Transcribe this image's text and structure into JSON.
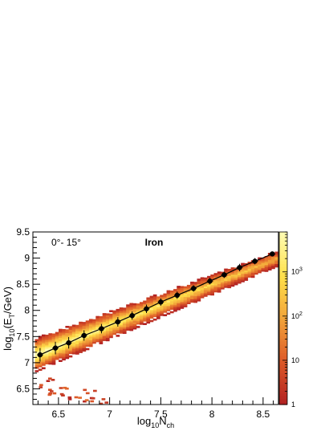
{
  "chart_data": {
    "type": "heatmap",
    "title": "",
    "xlabel": "log_{10}N_{ch}",
    "ylabel": "log_{10}(E_{T}/GeV)",
    "x_range": [
      6.25,
      8.65
    ],
    "y_range": [
      6.2,
      9.5
    ],
    "x_ticks": [
      "6.5",
      "7",
      "7.5",
      "8",
      "8.5"
    ],
    "y_ticks": [
      "6.5",
      "7",
      "7.5",
      "8",
      "8.5",
      "9",
      "9.5"
    ],
    "annotations": {
      "zenith_range": "0°- 15°",
      "primary": "Iron"
    },
    "color_scale": {
      "scale": "log",
      "range": [
        1,
        8000
      ],
      "tick_labels": [
        {
          "base": "1",
          "exp": ""
        },
        {
          "base": "10",
          "exp": ""
        },
        {
          "base": "10",
          "exp": "2"
        },
        {
          "base": "10",
          "exp": "3"
        }
      ],
      "colors": [
        "#b22222",
        "#dd5a28",
        "#f2a43a",
        "#ffe04a",
        "#fffbb0"
      ]
    },
    "heatmap_band": {
      "x_start": 6.27,
      "x_end": 8.62,
      "x_step": 0.033,
      "y_step": 0.033,
      "slope": 1.0,
      "intercept_y_at_x0": 7.2,
      "x0": 6.3,
      "half_width": 0.32,
      "low_tail": [
        {
          "x": 6.35,
          "y": 6.55
        },
        {
          "x": 6.42,
          "y": 6.45
        },
        {
          "x": 6.5,
          "y": 6.4
        },
        {
          "x": 6.6,
          "y": 6.37
        },
        {
          "x": 6.7,
          "y": 6.32
        },
        {
          "x": 6.82,
          "y": 6.3
        },
        {
          "x": 6.95,
          "y": 6.28
        },
        {
          "x": 6.4,
          "y": 6.7
        },
        {
          "x": 6.55,
          "y": 6.55
        },
        {
          "x": 6.78,
          "y": 6.45
        }
      ]
    },
    "series": [
      {
        "type": "profile",
        "x": [
          6.32,
          6.47,
          6.6,
          6.75,
          6.92,
          7.08,
          7.22,
          7.36,
          7.5,
          7.66,
          7.82,
          7.98,
          8.12,
          8.27,
          8.42,
          8.59
        ],
        "y": [
          7.15,
          7.28,
          7.38,
          7.52,
          7.65,
          7.78,
          7.9,
          8.03,
          8.16,
          8.29,
          8.42,
          8.56,
          8.68,
          8.82,
          8.94,
          9.08
        ],
        "y_err": [
          0.13,
          0.12,
          0.11,
          0.1,
          0.09,
          0.09,
          0.08,
          0.08,
          0.07,
          0.07,
          0.06,
          0.06,
          0.06,
          0.07,
          0.06,
          0.04
        ],
        "x_err": [
          0.03,
          0.03,
          0.03,
          0.03,
          0.03,
          0.03,
          0.03,
          0.03,
          0.03,
          0.03,
          0.03,
          0.03,
          0.03,
          0.03,
          0.03,
          0.03
        ]
      }
    ]
  }
}
